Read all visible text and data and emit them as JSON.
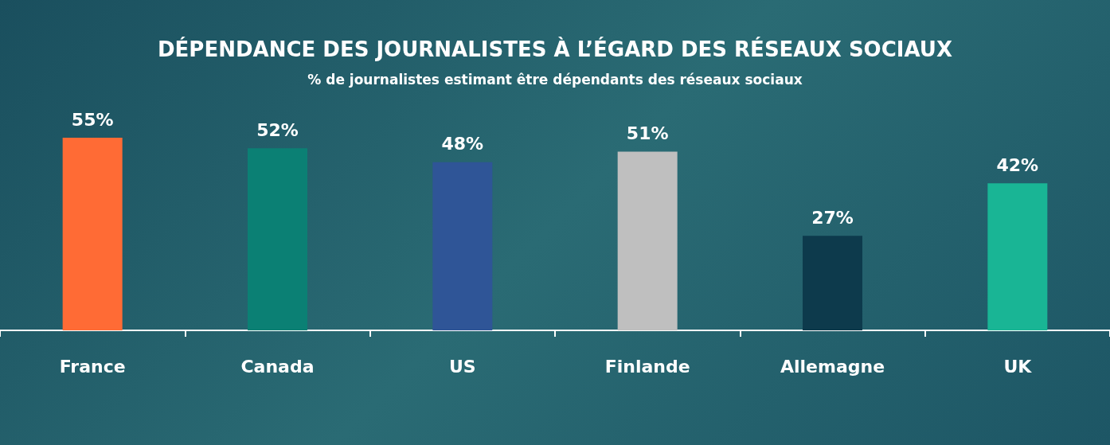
{
  "chart_data": {
    "type": "bar",
    "title": "DÉPENDANCE DES JOURNALISTES À L’ÉGARD DES RÉSEAUX SOCIAUX",
    "subtitle": "% de journalistes estimant être dépendants des réseaux sociaux",
    "categories": [
      "France",
      "Canada",
      "US",
      "Finlande",
      "Allemagne",
      "UK"
    ],
    "values": [
      55,
      52,
      48,
      51,
      27,
      42
    ],
    "colors": [
      "#ff6b35",
      "#0b8074",
      "#2f5597",
      "#bfbfbf",
      "#0d3a4c",
      "#19b595"
    ],
    "value_labels": [
      "55%",
      "52%",
      "48%",
      "51%",
      "27%",
      "42%"
    ],
    "grid": false
  }
}
